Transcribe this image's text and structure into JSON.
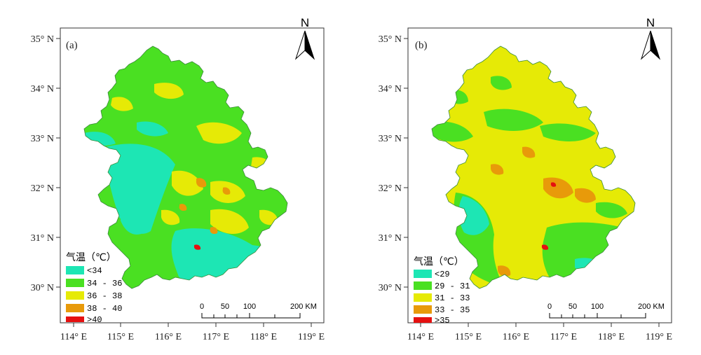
{
  "figure": {
    "panels": [
      {
        "label": "(a)",
        "north": "N",
        "legend": {
          "title": "气温（℃）",
          "classes": [
            {
              "label": "<34",
              "color": "#1de6b4"
            },
            {
              "label": "34 - 36",
              "color": "#4ae022"
            },
            {
              "label": "36 - 38",
              "color": "#e6ea06"
            },
            {
              "label": "38 - 40",
              "color": "#e89a0a"
            },
            {
              "label": ">40",
              "color": "#e51010"
            }
          ]
        },
        "scale": {
          "ticks": [
            "0",
            "50",
            "100",
            "200 KM"
          ]
        },
        "y_ticks": [
          "35° N",
          "34° N",
          "33° N",
          "32° N",
          "31° N",
          "30° N"
        ],
        "x_ticks": [
          "114° E",
          "115° E",
          "116° E",
          "117° E",
          "118° E",
          "119° E"
        ]
      },
      {
        "label": "(b)",
        "north": "N",
        "legend": {
          "title": "气温（℃）",
          "classes": [
            {
              "label": "<29",
              "color": "#1de6b4"
            },
            {
              "label": "29 - 31",
              "color": "#4ae022"
            },
            {
              "label": "31 - 33",
              "color": "#e6ea06"
            },
            {
              "label": "33 - 35",
              "color": "#e89a0a"
            },
            {
              "label": ">35",
              "color": "#e51010"
            }
          ]
        },
        "scale": {
          "ticks": [
            "0",
            "50",
            "100",
            "200 KM"
          ]
        },
        "y_ticks": [
          "35° N",
          "34° N",
          "33° N",
          "32° N",
          "31° N",
          "30° N"
        ],
        "x_ticks": [
          "114° E",
          "115° E",
          "116° E",
          "117° E",
          "118° E",
          "119° E"
        ]
      }
    ]
  }
}
